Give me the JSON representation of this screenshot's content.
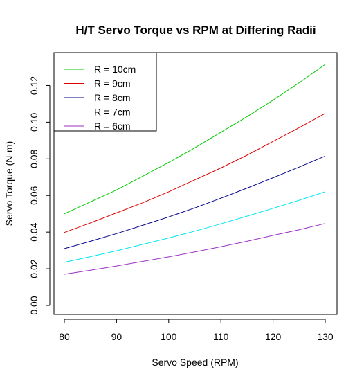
{
  "chart_data": {
    "type": "line",
    "title": "H/T Servo Torque vs RPM at Differing Radii",
    "xlabel": "Servo Speed (RPM)",
    "ylabel": "Servo Torque (N-m)",
    "xlim": [
      80,
      130
    ],
    "ylim": [
      0,
      0.13
    ],
    "x_ticks": [
      80,
      90,
      100,
      110,
      120,
      130
    ],
    "x_tick_labels": [
      "80",
      "90",
      "100",
      "110",
      "120",
      "130"
    ],
    "y_ticks": [
      0,
      0.02,
      0.04,
      0.06,
      0.08,
      0.1,
      0.12
    ],
    "y_tick_labels": [
      "0.00",
      "0.02",
      "0.04",
      "0.06",
      "0.08",
      "0.10",
      "0.12"
    ],
    "grid": false,
    "legend_position": "top-left",
    "x": [
      80,
      85,
      90,
      95,
      100,
      105,
      110,
      115,
      120,
      125,
      130
    ],
    "series": [
      {
        "name": "R = 10cm",
        "color": "#00cc00",
        "values": [
          0.05,
          0.0565,
          0.063,
          0.0705,
          0.078,
          0.086,
          0.0945,
          0.103,
          0.112,
          0.1215,
          0.1315
        ]
      },
      {
        "name": "R = 9cm",
        "color": "#dd0000",
        "values": [
          0.0398,
          0.045,
          0.0505,
          0.056,
          0.062,
          0.0685,
          0.075,
          0.082,
          0.0895,
          0.097,
          0.1048
        ]
      },
      {
        "name": "R = 8cm",
        "color": "#00008b",
        "values": [
          0.031,
          0.035,
          0.0392,
          0.0437,
          0.0483,
          0.0532,
          0.0585,
          0.064,
          0.0697,
          0.0755,
          0.0815
        ]
      },
      {
        "name": "R = 7cm",
        "color": "#00e5ee",
        "values": [
          0.0235,
          0.0266,
          0.0298,
          0.0333,
          0.0368,
          0.0405,
          0.0445,
          0.0487,
          0.053,
          0.0574,
          0.062
        ]
      },
      {
        "name": "R = 6cm",
        "color": "#9b30c0",
        "values": [
          0.017,
          0.0192,
          0.0215,
          0.024,
          0.0265,
          0.0292,
          0.032,
          0.035,
          0.0382,
          0.0413,
          0.0447
        ]
      }
    ]
  }
}
